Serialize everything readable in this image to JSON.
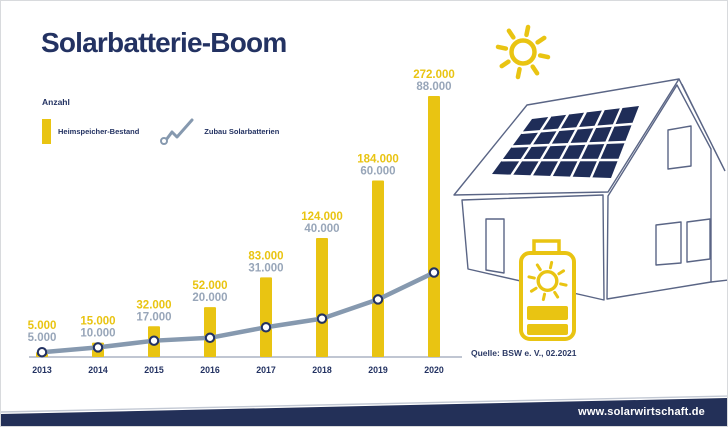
{
  "title": "Solarbatterie-Boom",
  "legend": {
    "axis_label": "Anzahl",
    "bar_series_label": "Heimspeicher-Bestand",
    "line_series_label": "Zubau Solarbatterien"
  },
  "source": "Quelle: BSW e. V., 02.2021",
  "footer": {
    "url": "www.solarwirtschaft.de"
  },
  "colors": {
    "accent_yellow": "#E9C412",
    "navy": "#233262",
    "panel_navy": "#1F2D58",
    "house_stroke": "#5A6585",
    "line_gray": "#8699AF",
    "value_gray": "#98A6B9",
    "axis_gray": "#9AA5B6",
    "band_navy": "#233058"
  },
  "icons": {
    "sun": "sun-icon",
    "battery": "battery-storage-icon",
    "house": "house-illustration",
    "solar_panel": "solar-panel",
    "legend_line": "line-series-icon"
  },
  "chart_data": {
    "type": "bar",
    "subtype": "bar+line combo",
    "title": "Solarbatterie-Boom",
    "ylabel": "Anzahl",
    "categories": [
      "2013",
      "2014",
      "2015",
      "2016",
      "2017",
      "2018",
      "2019",
      "2020"
    ],
    "series": [
      {
        "name": "Heimspeicher-Bestand",
        "type": "bar",
        "color": "#E9C412",
        "values": [
          5000,
          15000,
          32000,
          52000,
          83000,
          124000,
          184000,
          272000
        ]
      },
      {
        "name": "Zubau Solarbatterien",
        "type": "line",
        "color": "#8699AF",
        "values": [
          5000,
          10000,
          17000,
          20000,
          31000,
          40000,
          60000,
          88000
        ]
      }
    ],
    "value_labels_shown": true,
    "number_format": "de thousands dot (e.g. 272.000)",
    "ylim": [
      0,
      280000
    ],
    "grid": false,
    "legend_position": "top-left"
  }
}
